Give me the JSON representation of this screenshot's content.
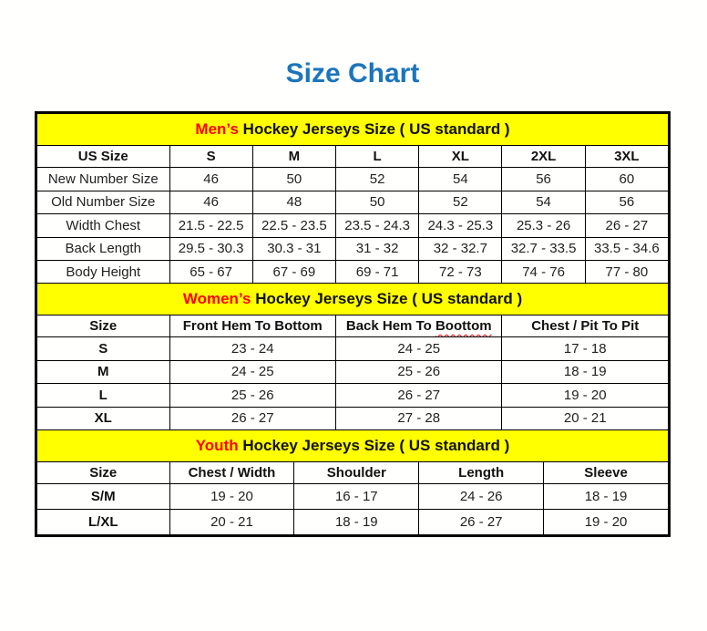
{
  "page": {
    "title": "Size Chart"
  },
  "colors": {
    "title_blue": "#1b75bc",
    "banner_yellow": "#ffff00",
    "highlight_red": "#ff0000",
    "grid_black": "#000000"
  },
  "tables": [
    {
      "id": "mens",
      "banner": {
        "highlight": "Men’s",
        "rest": " Hockey Jerseys Size ( US standard )"
      },
      "columns": [
        "US Size",
        "S",
        "M",
        "L",
        "XL",
        "2XL",
        "3XL"
      ],
      "rows": [
        {
          "label": "New Number Size",
          "values": [
            "46",
            "50",
            "52",
            "54",
            "56",
            "60"
          ]
        },
        {
          "label": "Old Number Size",
          "values": [
            "46",
            "48",
            "50",
            "52",
            "54",
            "56"
          ]
        },
        {
          "label": "Width Chest",
          "values": [
            "21.5 - 22.5",
            "22.5 - 23.5",
            "23.5 - 24.3",
            "24.3 - 25.3",
            "25.3 - 26",
            "26 - 27"
          ]
        },
        {
          "label": "Back Length",
          "values": [
            "29.5 - 30.3",
            "30.3 - 31",
            "31 - 32",
            "32 - 32.7",
            "32.7 - 33.5",
            "33.5 - 34.6"
          ]
        },
        {
          "label": "Body Height",
          "values": [
            "65 - 67",
            "67 - 69",
            "69 - 71",
            "72 - 73",
            "74 - 76",
            "77 - 80"
          ]
        }
      ]
    },
    {
      "id": "womens",
      "banner": {
        "highlight": "Women’s",
        "rest": " Hockey Jerseys Size ( US standard )"
      },
      "columns": [
        "Size",
        "Front Hem To Bottom",
        "Back Hem To Boottom",
        "Chest / Pit To Pit"
      ],
      "squiggle": {
        "column": 2,
        "word": "Boottom"
      },
      "rows": [
        {
          "label": "S",
          "values": [
            "23 - 24",
            "24 - 25",
            "17 - 18"
          ]
        },
        {
          "label": "M",
          "values": [
            "24 - 25",
            "25 - 26",
            "18 - 19"
          ]
        },
        {
          "label": "L",
          "values": [
            "25 - 26",
            "26 - 27",
            "19 - 20"
          ]
        },
        {
          "label": "XL",
          "values": [
            "26 - 27",
            "27 - 28",
            "20 - 21"
          ]
        }
      ]
    },
    {
      "id": "youth",
      "banner": {
        "highlight": "Youth",
        "rest": " Hockey Jerseys Size ( US standard )"
      },
      "columns": [
        "Size",
        "Chest / Width",
        "Shoulder",
        "Length",
        "Sleeve"
      ],
      "rows": [
        {
          "label": "S/M",
          "values": [
            "19 - 20",
            "16 - 17",
            "24 - 26",
            "18 - 19"
          ]
        },
        {
          "label": "L/XL",
          "values": [
            "20 - 21",
            "18 - 19",
            "26 - 27",
            "19 - 20"
          ]
        }
      ]
    }
  ]
}
